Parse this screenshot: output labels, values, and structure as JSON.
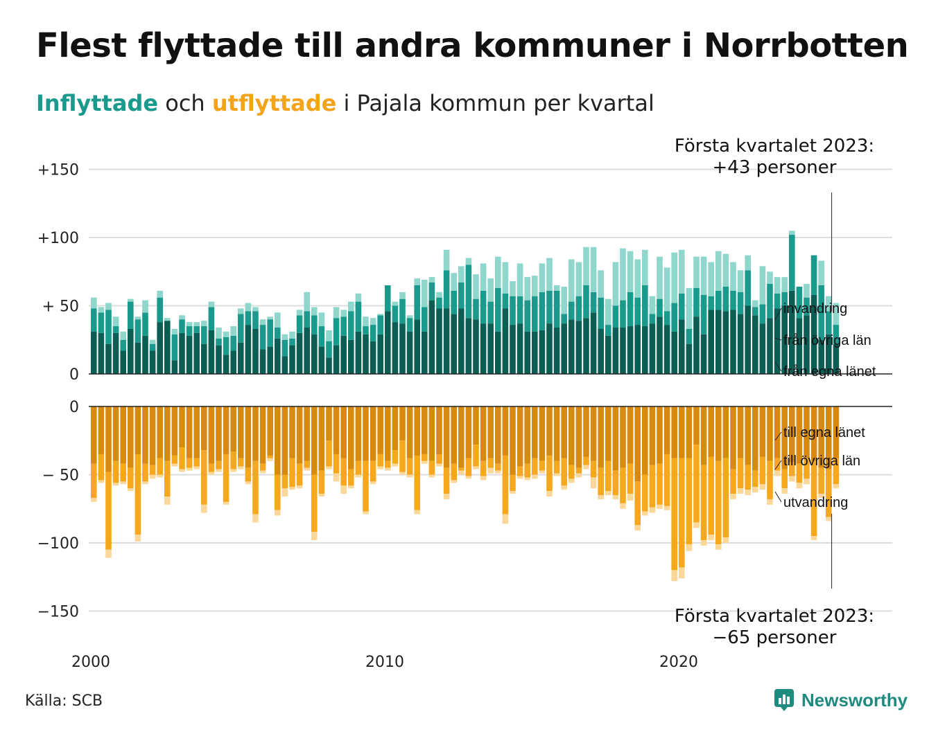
{
  "title": "Flest flyttade till andra kommuner i Norrbotten",
  "subtitle": {
    "part1": "Inflyttade",
    "part2": " och ",
    "part3": "utflyttade",
    "part4": " i Pajala kommun per kvartal"
  },
  "source": "Källa: SCB",
  "logo": {
    "name": "Newsworthy",
    "icon": "newsworthy-logo-icon"
  },
  "colors": {
    "in_egna": "#0c5e55",
    "in_ovriga": "#1a9a8c",
    "in_invandring": "#8fd6cc",
    "out_egna": "#d88a0f",
    "out_ovriga": "#f5a81d",
    "out_utvandring": "#fbd89a",
    "grid": "#dddddd"
  },
  "chart_data": {
    "type": "bar",
    "stacked": true,
    "x_start": "2000 Q1",
    "x_ticks": [
      "2000",
      "2010",
      "2020"
    ],
    "inflow_axis": {
      "ticks": [
        "+150",
        "+100",
        "+ 50",
        "0"
      ],
      "ylim": [
        0,
        150
      ]
    },
    "outflow_axis": {
      "ticks": [
        "0",
        "− 50",
        "−100",
        "−150"
      ],
      "ylim": [
        -150,
        0
      ]
    },
    "inflow_series": [
      {
        "name": "från egna länet",
        "values": [
          31,
          30,
          22,
          30,
          17,
          33,
          23,
          28,
          17,
          38,
          39,
          10,
          30,
          28,
          30,
          22,
          32,
          21,
          14,
          17,
          23,
          36,
          33,
          18,
          20,
          26,
          13,
          21,
          30,
          34,
          29,
          20,
          12,
          21,
          28,
          25,
          31,
          29,
          24,
          29,
          46,
          38,
          37,
          31,
          40,
          31,
          54,
          48,
          48,
          44,
          48,
          41,
          40,
          37,
          37,
          31,
          48,
          36,
          37,
          31,
          31,
          32,
          37,
          34,
          37,
          40,
          39,
          41,
          45,
          33,
          28,
          34,
          34,
          35,
          36,
          35,
          37,
          42,
          36,
          31,
          40,
          22,
          42,
          29,
          47,
          47,
          46,
          47,
          44,
          50,
          43,
          37,
          41,
          48,
          50,
          61,
          41,
          43,
          58,
          25,
          29,
          22
        ]
      },
      {
        "name": "från övriga län",
        "values": [
          17,
          15,
          25,
          5,
          8,
          20,
          17,
          17,
          5,
          18,
          0,
          19,
          10,
          7,
          5,
          13,
          17,
          5,
          13,
          11,
          21,
          10,
          13,
          18,
          20,
          8,
          12,
          5,
          13,
          12,
          14,
          15,
          12,
          20,
          14,
          21,
          22,
          6,
          12,
          14,
          19,
          12,
          18,
          10,
          25,
          18,
          13,
          8,
          28,
          17,
          19,
          39,
          15,
          24,
          16,
          32,
          11,
          21,
          20,
          23,
          26,
          28,
          24,
          27,
          7,
          13,
          18,
          24,
          15,
          23,
          8,
          16,
          20,
          25,
          20,
          30,
          7,
          13,
          10,
          21,
          19,
          11,
          21,
          29,
          10,
          14,
          18,
          14,
          16,
          26,
          6,
          14,
          25,
          11,
          10,
          41,
          23,
          13,
          29,
          40,
          17,
          14
        ]
      },
      {
        "name": "invandring",
        "values": [
          8,
          4,
          5,
          7,
          6,
          2,
          2,
          9,
          3,
          5,
          2,
          4,
          3,
          3,
          3,
          4,
          4,
          8,
          4,
          7,
          4,
          6,
          3,
          4,
          2,
          11,
          4,
          5,
          4,
          14,
          6,
          10,
          8,
          8,
          5,
          7,
          6,
          7,
          5,
          1,
          0,
          3,
          5,
          2,
          5,
          20,
          4,
          4,
          15,
          13,
          12,
          5,
          18,
          20,
          17,
          23,
          23,
          11,
          24,
          17,
          15,
          21,
          24,
          4,
          20,
          31,
          25,
          28,
          33,
          20,
          19,
          32,
          38,
          30,
          28,
          26,
          13,
          31,
          32,
          37,
          32,
          30,
          23,
          28,
          25,
          29,
          24,
          21,
          16,
          11,
          5,
          28,
          9,
          12,
          11,
          3,
          0,
          10,
          0,
          18,
          11,
          16
        ]
      }
    ],
    "outflow_series": [
      {
        "name": "till egna länet",
        "values": [
          -42,
          -35,
          -48,
          -40,
          -42,
          -45,
          -35,
          -42,
          -43,
          -38,
          -40,
          -36,
          -30,
          -38,
          -38,
          -32,
          -42,
          -40,
          -35,
          -33,
          -38,
          -45,
          -40,
          -42,
          -36,
          -50,
          -50,
          -38,
          -42,
          -40,
          -50,
          -47,
          -25,
          -35,
          -38,
          -46,
          -40,
          -40,
          -40,
          -35,
          -40,
          -32,
          -25,
          -38,
          -36,
          -35,
          -40,
          -35,
          -45,
          -42,
          -45,
          -38,
          -28,
          -40,
          -38,
          -42,
          -36,
          -50,
          -44,
          -42,
          -38,
          -40,
          -36,
          -40,
          -38,
          -43,
          -45,
          -37,
          -40,
          -45,
          -40,
          -47,
          -45,
          -42,
          -55,
          -50,
          -43,
          -42,
          -35,
          -38,
          -38,
          -38,
          -28,
          -43,
          -37,
          -40,
          -38,
          -46,
          -38,
          -43,
          -47,
          -37,
          -40,
          -38,
          -46,
          -41,
          -42,
          -38,
          -40,
          -45,
          -46,
          -38
        ]
      },
      {
        "name": "till övriga län",
        "values": [
          -25,
          -19,
          -57,
          -16,
          -13,
          -15,
          -59,
          -13,
          -7,
          -12,
          -26,
          -6,
          -16,
          -7,
          -6,
          -40,
          -6,
          -6,
          -35,
          -13,
          -6,
          -10,
          -39,
          -5,
          -2,
          -26,
          -10,
          -21,
          -16,
          -5,
          -42,
          -17,
          -19,
          -14,
          -20,
          -12,
          -10,
          -37,
          -15,
          -9,
          -5,
          -10,
          -23,
          -12,
          -40,
          -5,
          -10,
          -7,
          -19,
          -12,
          -2,
          -13,
          -16,
          -11,
          -7,
          -5,
          -43,
          -12,
          -7,
          -10,
          -12,
          -7,
          -26,
          -9,
          -20,
          -10,
          -4,
          -6,
          -12,
          -20,
          -22,
          -18,
          -26,
          -22,
          -32,
          -27,
          -31,
          -30,
          -38,
          -82,
          -80,
          -63,
          -57,
          -55,
          -57,
          -61,
          -58,
          -18,
          -22,
          -18,
          -12,
          -20,
          -28,
          -9,
          -14,
          -10,
          -14,
          -15,
          -55,
          -19,
          -35,
          -19
        ]
      },
      {
        "name": "utvandring",
        "values": [
          -3,
          -2,
          -6,
          -2,
          -2,
          -2,
          -5,
          -2,
          -3,
          -2,
          -6,
          -2,
          -2,
          -2,
          -2,
          -6,
          -2,
          -2,
          -2,
          -2,
          -2,
          -2,
          -6,
          -2,
          -2,
          -4,
          -6,
          -2,
          -2,
          -2,
          -6,
          -2,
          -2,
          -6,
          -6,
          -2,
          -2,
          -2,
          -2,
          -2,
          -2,
          -2,
          -2,
          -2,
          -3,
          -2,
          -2,
          -2,
          -4,
          -2,
          -3,
          -2,
          -2,
          -3,
          -4,
          -2,
          -7,
          -2,
          -2,
          -2,
          -3,
          -2,
          -4,
          -2,
          -3,
          -3,
          -3,
          -3,
          -8,
          -3,
          -3,
          -3,
          -4,
          -5,
          -4,
          -3,
          -4,
          -3,
          -3,
          -8,
          -8,
          -5,
          -4,
          -4,
          -4,
          -4,
          -4,
          -4,
          -4,
          -4,
          -4,
          -4,
          -4,
          -4,
          -4,
          -4,
          -4,
          -4,
          -3,
          -3,
          -3,
          -3
        ]
      }
    ],
    "annotations": {
      "top_line1": "Första kvartalet 2023:",
      "top_line2": "+43 personer",
      "bottom_line1": "Första kvartalet 2023:",
      "bottom_line2": "−65 personer"
    }
  }
}
